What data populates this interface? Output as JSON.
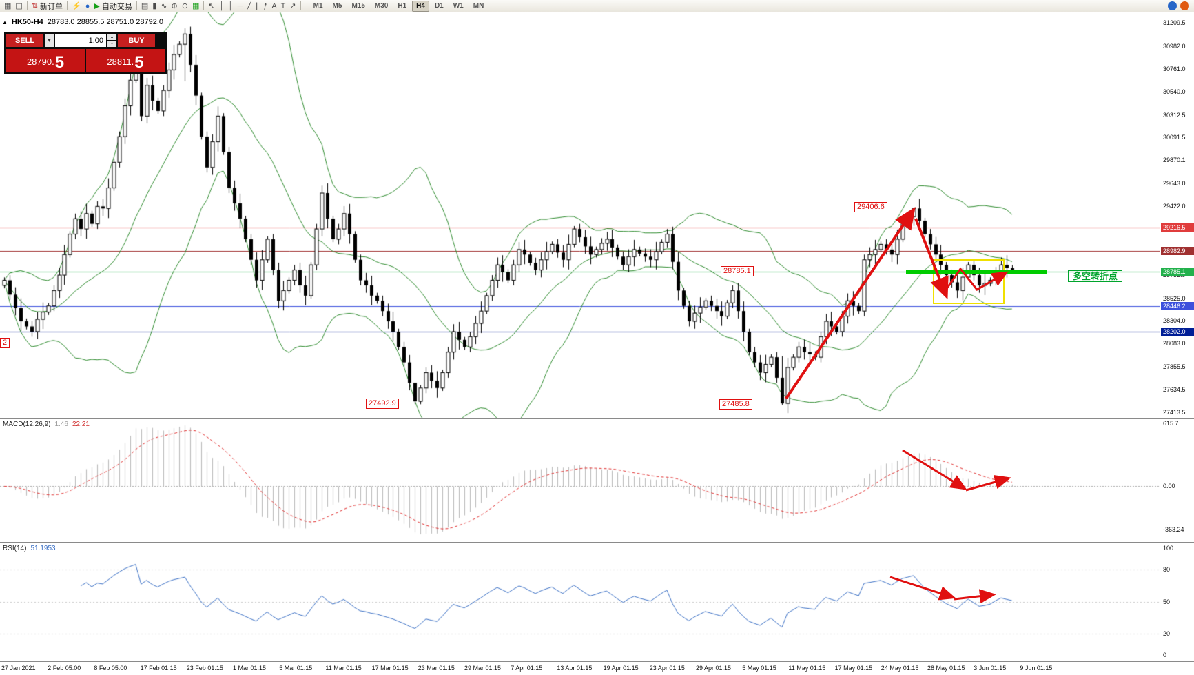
{
  "toolbar": {
    "groups": [
      {
        "items": [
          {
            "name": "terminal-icon",
            "glyph": "▦"
          },
          {
            "name": "new-chart-icon",
            "glyph": "◫"
          }
        ]
      },
      {
        "items": [
          {
            "name": "new-order-button",
            "glyph": "⇅",
            "color": "#c03030",
            "label": "新订单"
          }
        ]
      },
      {
        "items": [
          {
            "name": "autotrading-lightning-icon",
            "glyph": "⚡",
            "color": "#dca000"
          },
          {
            "name": "expert-advisors-icon",
            "glyph": "●",
            "color": "#2565c8"
          },
          {
            "name": "auto-trading-button",
            "glyph": "▶",
            "color": "#18a018",
            "label": "自动交易"
          }
        ]
      },
      {
        "items": [
          {
            "name": "bar-chart-icon",
            "glyph": "▤"
          },
          {
            "name": "candlestick-chart-icon",
            "glyph": "▮"
          },
          {
            "name": "line-chart-icon",
            "glyph": "∿"
          },
          {
            "name": "zoom-in-icon",
            "glyph": "⊕"
          },
          {
            "name": "zoom-out-icon",
            "glyph": "⊖"
          },
          {
            "name": "tile-windows-icon",
            "glyph": "▦",
            "color": "#18a018"
          }
        ]
      },
      {
        "items": [
          {
            "name": "cursor-icon",
            "glyph": "↖"
          },
          {
            "name": "crosshair-icon",
            "glyph": "┼"
          },
          {
            "name": "vertical-line-icon",
            "glyph": "│"
          },
          {
            "name": "horizontal-line-icon",
            "glyph": "─"
          },
          {
            "name": "trendline-icon",
            "glyph": "╱"
          },
          {
            "name": "equidistant-channel-icon",
            "glyph": "∥"
          },
          {
            "name": "fibonacci-icon",
            "glyph": "ƒ"
          },
          {
            "name": "text-icon",
            "glyph": "A"
          },
          {
            "name": "text-label-icon",
            "glyph": "T"
          },
          {
            "name": "arrow-tool-icon",
            "glyph": "↗"
          }
        ]
      }
    ],
    "timeframes": [
      "M1",
      "M5",
      "M15",
      "M30",
      "H1",
      "H4",
      "D1",
      "W1",
      "MN"
    ],
    "active_timeframe": "H4",
    "right_icons": [
      {
        "name": "community-icon",
        "color": "#2565c8"
      },
      {
        "name": "alerts-icon",
        "color": "#e05a10"
      }
    ]
  },
  "chart": {
    "collapse_glyph": "▲",
    "symbol_period": "HK50-H4",
    "ohlc_line": "28783.0 28855.5 28751.0 28792.0"
  },
  "trade_panel": {
    "sell_label": "SELL",
    "buy_label": "BUY",
    "volume": "1.00",
    "dropdown_glyph": "▾",
    "spin_up_glyph": "▴",
    "spin_down_glyph": "▾",
    "sell_price_main": "28790.",
    "sell_price_big": "5",
    "buy_price_main": "28811.",
    "buy_price_big": "5"
  },
  "price_axis": {
    "ticks": [
      "31209.5",
      "30982.0",
      "30761.0",
      "30540.0",
      "30312.5",
      "30091.5",
      "29870.1",
      "29643.0",
      "29422.0",
      "28752.9",
      "28525.0",
      "28304.0",
      "28083.0",
      "27855.5",
      "27634.5",
      "27413.5"
    ],
    "badges": [
      {
        "value": "29216.5",
        "color": "#e03c3c"
      },
      {
        "value": "28982.9",
        "color": "#a03030"
      },
      {
        "value": "28785.1",
        "color": "#22b14c"
      },
      {
        "value": "28446.2",
        "color": "#3c50dc"
      },
      {
        "value": "28202.0",
        "color": "#001e96"
      }
    ]
  },
  "time_axis": {
    "labels": [
      "27 Jan 2021",
      "2 Feb 05:00",
      "8 Feb 05:00",
      "17 Feb 01:15",
      "23 Feb 01:15",
      "1 Mar 01:15",
      "5 Mar 01:15",
      "11 Mar 01:15",
      "17 Mar 01:15",
      "23 Mar 01:15",
      "29 Mar 01:15",
      "7 Apr 01:15",
      "13 Apr 01:15",
      "19 Apr 01:15",
      "23 Apr 01:15",
      "29 Apr 01:15",
      "5 May 01:15",
      "11 May 01:15",
      "17 May 01:15",
      "24 May 01:15",
      "28 May 01:15",
      "3 Jun 01:15",
      "9 Jun 01:15"
    ]
  },
  "annotations": {
    "peak_price_label": "29406.6",
    "level_price_label": "28785.1",
    "low1_price_label": "27492.9",
    "low2_price_label": "27485.8",
    "turning_point_label": "多空转折点",
    "left_clipped_label": "2"
  },
  "macd": {
    "name": "MACD(12,26,9)",
    "value_main": "1.46",
    "value_signal": "22.21",
    "axis": [
      "615.7",
      "0.00",
      "-363.24"
    ]
  },
  "rsi": {
    "name": "RSI(14)",
    "value": "51.1953",
    "axis": [
      "100",
      "80",
      "50",
      "20",
      "0"
    ]
  },
  "chart_data": {
    "type": "candlestick",
    "symbol": "HK50",
    "timeframe": "H4",
    "current": {
      "open": 28783.0,
      "high": 28855.5,
      "low": 28751.0,
      "close": 28792.0,
      "bid": 28790.5,
      "ask": 28811.5
    },
    "price_axis_range": [
      27413.5,
      31209.5
    ],
    "first_open": 28650,
    "closes": [
      28700,
      28560,
      28430,
      28300,
      28250,
      28200,
      28320,
      28390,
      28450,
      28600,
      28750,
      28950,
      29150,
      29300,
      29200,
      29350,
      29250,
      29420,
      29400,
      29600,
      29850,
      30100,
      30400,
      30650,
      30900,
      30300,
      30600,
      30450,
      30350,
      30550,
      30750,
      30900,
      31000,
      31100,
      30800,
      30500,
      30100,
      29800,
      30050,
      30300,
      29950,
      29600,
      29450,
      29300,
      29100,
      28900,
      28700,
      28900,
      29100,
      28800,
      28500,
      28600,
      28700,
      28800,
      28650,
      28550,
      28850,
      29200,
      29550,
      29300,
      29100,
      29200,
      29350,
      29150,
      28900,
      28700,
      28650,
      28550,
      28500,
      28400,
      28300,
      28200,
      28050,
      27900,
      27700,
      27520,
      27650,
      27800,
      27720,
      27650,
      27800,
      28000,
      28200,
      28120,
      28050,
      28150,
      28280,
      28400,
      28550,
      28700,
      28850,
      28780,
      28700,
      28850,
      29000,
      28950,
      28870,
      28800,
      28900,
      28980,
      29050,
      28970,
      28900,
      29050,
      29200,
      29120,
      29030,
      28950,
      29000,
      29060,
      29100,
      29020,
      28930,
      28850,
      28930,
      29000,
      28960,
      28930,
      28900,
      28980,
      29070,
      29150,
      28880,
      28600,
      28450,
      28300,
      28380,
      28440,
      28500,
      28450,
      28400,
      28350,
      28480,
      28600,
      28400,
      28200,
      28000,
      27900,
      27800,
      27880,
      27950,
      27750,
      27500,
      27850,
      27950,
      28050,
      28000,
      27980,
      27950,
      28150,
      28300,
      28250,
      28200,
      28350,
      28500,
      28450,
      28400,
      28900,
      28950,
      29000,
      29050,
      29000,
      28950,
      29100,
      29250,
      29320,
      29400,
      29280,
      29150,
      29050,
      28950,
      28850,
      28750,
      28680,
      28600,
      28730,
      28850,
      28750,
      28650,
      28670,
      28700,
      28780,
      28850,
      28820,
      28792
    ],
    "wicks": [
      [
        33,
        31155,
        30640
      ],
      [
        75,
        27660,
        27492.9
      ],
      [
        142,
        27960,
        27485.8
      ],
      [
        166,
        29406.6,
        29230
      ]
    ],
    "hlines": [
      {
        "price": 29216.5,
        "color": "#e03c3c"
      },
      {
        "price": 28982.9,
        "color": "#a03030"
      },
      {
        "price": 28785.1,
        "color": "#22b14c"
      },
      {
        "price": 28446.2,
        "color": "#3c50dc"
      },
      {
        "price": 28202.0,
        "color": "#001e96"
      }
    ],
    "swing_high": 29406.6,
    "swing_lows": [
      27492.9,
      27485.8
    ],
    "support_level": 28785.1,
    "indicators": {
      "bollinger": {
        "period": 20,
        "deviation": 2
      },
      "macd": {
        "fast": 12,
        "slow": 26,
        "signal": 9,
        "display_values": [
          1.46,
          22.21
        ],
        "axis_max": 615.7,
        "axis_min": -363.24
      },
      "rsi": {
        "period": 14,
        "display_value": 51.1953
      }
    }
  }
}
